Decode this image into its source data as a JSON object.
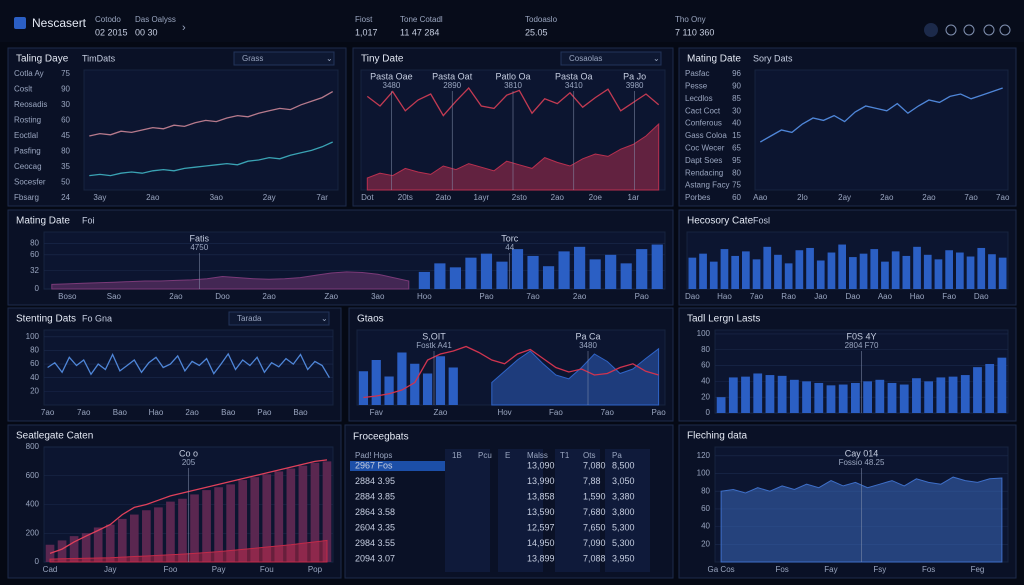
{
  "header": {
    "brand": "Nescasert",
    "stats": [
      {
        "label": "Cotodo",
        "value": "02 2015"
      },
      {
        "label": "Das Oalyss",
        "value": "00 30"
      },
      {
        "label": "Fiost",
        "value": "1,017"
      },
      {
        "label": "Tone Cotadl",
        "value": "11 47 284"
      },
      {
        "label": "Todoaslo",
        "value": "25.05"
      },
      {
        "label": "Tho Ony",
        "value": "7 110 360"
      }
    ]
  },
  "chart_data": [
    {
      "type": "line",
      "title": "Taling Daye",
      "subtitle": "TimDats",
      "selector": "Grass",
      "sidebar": [
        {
          "label": "Cotla Ay",
          "value": 75
        },
        {
          "label": "Coslt",
          "value": 90
        },
        {
          "label": "Reosadis",
          "value": 30
        },
        {
          "label": "Rosting",
          "value": 60
        },
        {
          "label": "Eoctlal",
          "value": 45
        },
        {
          "label": "Pasfing",
          "value": 80
        },
        {
          "label": "Ceocag",
          "value": 35
        },
        {
          "label": "Socesfer",
          "value": 50
        },
        {
          "label": "Fbsarg",
          "value": 24
        }
      ],
      "categories": [
        null,
        "3ay",
        null,
        null,
        null,
        null,
        "2ao",
        null,
        null,
        null,
        null,
        null,
        "3ao",
        null,
        null,
        null,
        null,
        "2ay",
        null,
        null,
        null,
        null,
        "7ar",
        null
      ],
      "ylim": [
        0,
        100
      ],
      "series": [
        {
          "color": "#b77a8c",
          "values": [
            45,
            47,
            46,
            49,
            48,
            50,
            52,
            51,
            54,
            53,
            56,
            58,
            57,
            60,
            62,
            61,
            64,
            66,
            68,
            67,
            71,
            74,
            77,
            82
          ]
        },
        {
          "color": "#3aa3b4",
          "values": [
            12,
            13,
            12,
            14,
            15,
            14,
            16,
            17,
            16,
            18,
            19,
            20,
            21,
            22,
            21,
            24,
            25,
            27,
            26,
            29,
            31,
            33,
            36,
            40
          ]
        }
      ]
    },
    {
      "type": "combo",
      "title": "Tiny Date",
      "selector": "Cosaolas",
      "categories": [
        "Dot",
        null,
        null,
        "20ts",
        null,
        null,
        "2ato",
        null,
        null,
        "1ayr",
        null,
        null,
        "2sto",
        null,
        null,
        "2ao",
        null,
        null,
        "2oe",
        null,
        null,
        "1ar",
        null,
        null
      ],
      "ylim": [
        0,
        100
      ],
      "annotations": [
        {
          "label": "Pasta Oae",
          "value": "3480"
        },
        {
          "label": "Pasta Oat",
          "value": "2890"
        },
        {
          "label": "Patlo Oa",
          "value": "3810"
        },
        {
          "label": "Pasta Oa",
          "value": "3410"
        },
        {
          "label": "Pa Jo",
          "value": "3980"
        }
      ],
      "series": [
        {
          "type": "area",
          "color": "#b8304f",
          "values": [
            10,
            14,
            12,
            18,
            15,
            13,
            20,
            17,
            22,
            19,
            16,
            24,
            21,
            18,
            27,
            23,
            20,
            26,
            30,
            28,
            34,
            38,
            45,
            55
          ]
        },
        {
          "type": "line",
          "color": "#c23a52",
          "values": [
            78,
            70,
            82,
            66,
            75,
            80,
            62,
            74,
            85,
            70,
            68,
            79,
            83,
            64,
            76,
            72,
            81,
            69,
            77,
            84,
            66,
            73,
            80,
            71
          ]
        }
      ]
    },
    {
      "type": "line",
      "title": "Mating Date",
      "subtitle": "Sory Dats",
      "sidebar": [
        {
          "label": "Pasfac",
          "value": 96
        },
        {
          "label": "Pesse",
          "value": 90
        },
        {
          "label": "Lecdlos",
          "value": 85
        },
        {
          "label": "Cact Coct",
          "value": 30
        },
        {
          "label": "Conferous",
          "value": 40
        },
        {
          "label": "Gass Coloa",
          "value": 15
        },
        {
          "label": "Coc Wecer",
          "value": 65
        },
        {
          "label": "Dapt Soes",
          "value": 95
        },
        {
          "label": "Rendacing",
          "value": 80
        },
        {
          "label": "Astang Facy",
          "value": 75
        },
        {
          "label": "Porbes",
          "value": 60
        }
      ],
      "categories": [
        "Aao",
        null,
        null,
        null,
        "2lo",
        null,
        null,
        null,
        "2ay",
        null,
        null,
        null,
        "2ao",
        null,
        null,
        null,
        "2ao",
        null,
        null,
        null,
        "7ao",
        null,
        null,
        "7ao"
      ],
      "ylim": [
        0,
        100
      ],
      "series": [
        {
          "color": "#4f86d8",
          "values": [
            40,
            45,
            50,
            48,
            55,
            60,
            58,
            62,
            57,
            65,
            70,
            68,
            66,
            72,
            64,
            70,
            75,
            73,
            78,
            80,
            76,
            79,
            82,
            85
          ]
        }
      ]
    },
    {
      "type": "combo",
      "title": "Mating Date",
      "subtitle": "Foi",
      "categories": [
        null,
        "Boso",
        null,
        null,
        "Sao",
        null,
        null,
        null,
        "2ao",
        null,
        null,
        "Doo",
        null,
        null,
        "2ao",
        null,
        null,
        null,
        "Zao",
        null,
        null,
        "3ao",
        null,
        null,
        "Hoo",
        null,
        null,
        null,
        "Pao",
        null,
        null,
        "7ao",
        null,
        null,
        "2ao",
        null,
        null,
        null,
        "Pao",
        null
      ],
      "ylim": [
        0,
        100
      ],
      "yticks": [
        0,
        32,
        60,
        80
      ],
      "annotations": [
        {
          "label": "Fatis",
          "value": "4750"
        },
        {
          "label": "Torc",
          "value": "44"
        }
      ],
      "series": [
        {
          "type": "area",
          "color": "#7a3a78",
          "values": [
            8,
            9,
            10,
            11,
            12,
            13,
            14,
            14,
            15,
            16,
            18,
            22,
            20,
            18,
            17,
            18,
            20,
            24,
            28,
            30,
            29,
            26,
            20,
            14,
            null,
            null,
            null,
            null,
            null,
            null,
            null,
            null,
            null,
            null,
            null,
            null,
            null,
            null,
            null,
            null
          ]
        },
        {
          "type": "bar",
          "color": "#2b5fc4",
          "values": [
            null,
            null,
            null,
            null,
            null,
            null,
            null,
            null,
            null,
            null,
            null,
            null,
            null,
            null,
            null,
            null,
            null,
            null,
            null,
            null,
            null,
            null,
            null,
            null,
            30,
            45,
            38,
            55,
            62,
            48,
            70,
            58,
            40,
            66,
            74,
            52,
            60,
            45,
            70,
            78
          ]
        }
      ]
    },
    {
      "type": "bar",
      "title": "Hecosory Cate",
      "subtitle": "Fosl",
      "categories": [
        "Dao",
        null,
        null,
        "Hao",
        null,
        null,
        "7ao",
        null,
        null,
        "Rao",
        null,
        null,
        "Jao",
        null,
        null,
        "Dao",
        null,
        null,
        "Aao",
        null,
        null,
        "Hao",
        null,
        null,
        "Fao",
        null,
        null,
        "Dao",
        null,
        null
      ],
      "ylim": [
        0,
        100
      ],
      "series": [
        {
          "color": "#2b5fc4",
          "values": [
            55,
            62,
            48,
            70,
            58,
            66,
            52,
            74,
            60,
            45,
            68,
            72,
            50,
            64,
            78,
            56,
            62,
            70,
            48,
            66,
            58,
            74,
            60,
            52,
            68,
            64,
            57,
            72,
            61,
            55
          ]
        }
      ]
    },
    {
      "type": "line",
      "title": "Stenting Dats",
      "subtitle": "Fo Gna",
      "selector": "Tarada",
      "categories": [
        "7ao",
        null,
        null,
        null,
        null,
        "7ao",
        null,
        null,
        null,
        null,
        "Bao",
        null,
        null,
        null,
        null,
        "Hao",
        null,
        null,
        null,
        null,
        "2ao",
        null,
        null,
        null,
        null,
        "Bao",
        null,
        null,
        null,
        null,
        "Pao",
        null,
        null,
        null,
        null,
        "Bao",
        null,
        null,
        null,
        null
      ],
      "ylim": [
        0,
        110
      ],
      "yticks": [
        20,
        40,
        60,
        80,
        100
      ],
      "series": [
        {
          "color": "#4f86d8",
          "values": [
            55,
            62,
            48,
            70,
            58,
            66,
            45,
            60,
            52,
            74,
            50,
            58,
            66,
            48,
            62,
            70,
            55,
            60,
            72,
            50,
            64,
            58,
            68,
            46,
            60,
            75,
            52,
            66,
            58,
            70,
            48,
            62,
            56,
            68,
            60,
            74,
            52,
            64,
            58,
            40
          ]
        }
      ]
    },
    {
      "type": "combo",
      "title": "Gtaos",
      "categories": [
        null,
        "Fav",
        null,
        null,
        null,
        null,
        "Zao",
        null,
        null,
        null,
        null,
        "Hov",
        null,
        null,
        null,
        "Fao",
        null,
        null,
        null,
        "7ao",
        null,
        null,
        null,
        "Pao"
      ],
      "ylim": [
        0,
        100
      ],
      "annotations": [
        {
          "label": "S,OIT",
          "value": "Fostk A41"
        },
        {
          "label": "Pa Ca",
          "value": "3480"
        }
      ],
      "series": [
        {
          "type": "bar",
          "color": "#2b5fc4",
          "values": [
            45,
            60,
            38,
            70,
            55,
            42,
            65,
            50,
            null,
            null,
            null,
            null,
            null,
            null,
            null,
            null,
            null,
            null,
            null,
            null,
            null,
            null,
            null,
            null
          ]
        },
        {
          "type": "area",
          "color": "#2f64c8",
          "values": [
            null,
            null,
            null,
            null,
            null,
            null,
            null,
            null,
            null,
            null,
            30,
            45,
            60,
            72,
            55,
            40,
            35,
            50,
            68,
            58,
            42,
            48,
            62,
            75
          ]
        },
        {
          "type": "line",
          "color": "#d0344f",
          "values": [
            10,
            12,
            15,
            20,
            30,
            60,
            68,
            72,
            78,
            70,
            60,
            55,
            68,
            74,
            62,
            50,
            44,
            48,
            40,
            42,
            50,
            55,
            45,
            40
          ]
        }
      ]
    },
    {
      "type": "bar",
      "title": "Tadl Lergn Lasts",
      "ylim": [
        0,
        105
      ],
      "yticks": [
        0,
        20,
        40,
        60,
        80,
        100
      ],
      "annotations": [
        {
          "label": "F0S 4Y",
          "value": "2804 F70"
        }
      ],
      "series": [
        {
          "color": "#2b5fc4",
          "values": [
            20,
            45,
            46,
            50,
            48,
            47,
            42,
            40,
            38,
            35,
            36,
            38,
            40,
            42,
            38,
            36,
            44,
            40,
            45,
            46,
            48,
            58,
            62,
            70
          ]
        }
      ]
    },
    {
      "type": "combo",
      "title": "Seatlegate Caten",
      "categories": [
        "Cad",
        null,
        null,
        null,
        null,
        "Jay",
        null,
        null,
        null,
        null,
        "Foo",
        null,
        null,
        null,
        "Pay",
        null,
        null,
        null,
        "Fou",
        null,
        null,
        null,
        "Pop",
        null
      ],
      "ylim": [
        0,
        800
      ],
      "yticks": [
        0,
        200,
        400,
        600,
        800
      ],
      "annotations": [
        {
          "label": "Co o",
          "value": "205"
        }
      ],
      "series": [
        {
          "type": "bar",
          "color": "#5a2750",
          "values": [
            120,
            150,
            180,
            200,
            240,
            260,
            300,
            330,
            360,
            380,
            420,
            440,
            470,
            500,
            520,
            540,
            570,
            590,
            610,
            630,
            650,
            670,
            690,
            700
          ]
        },
        {
          "type": "area",
          "color": "#c22a48",
          "values": [
            20,
            22,
            24,
            26,
            28,
            30,
            34,
            38,
            42,
            46,
            50,
            55,
            60,
            66,
            72,
            80,
            88,
            96,
            104,
            112,
            120,
            130,
            140,
            150
          ]
        },
        {
          "type": "line",
          "color": "#e0405a",
          "values": [
            60,
            90,
            140,
            180,
            220,
            260,
            330,
            380,
            400,
            430,
            460,
            480,
            500,
            520,
            540,
            560,
            580,
            600,
            620,
            640,
            660,
            680,
            700,
            710
          ]
        }
      ]
    },
    {
      "type": "area",
      "title": "Fleching data",
      "categories": [
        "Ga Cos",
        null,
        null,
        null,
        null,
        "Fos",
        null,
        null,
        null,
        "Fay",
        null,
        null,
        null,
        "Fsy",
        null,
        null,
        null,
        "Fos",
        null,
        null,
        null,
        "Feg",
        null,
        null
      ],
      "ylim": [
        0,
        130
      ],
      "yticks": [
        20,
        40,
        60,
        80,
        100,
        120
      ],
      "annotations": [
        {
          "label": "Cay 014",
          "value": "Fossio 48.25"
        }
      ],
      "series": [
        {
          "color": "#3e6fc8",
          "values": [
            80,
            82,
            78,
            84,
            80,
            86,
            82,
            88,
            84,
            92,
            86,
            90,
            84,
            88,
            92,
            86,
            94,
            90,
            88,
            96,
            92,
            90,
            94,
            95
          ]
        }
      ]
    }
  ],
  "table": {
    "title": "Froceegbats",
    "headers": [
      "Pad! Hops",
      "1B",
      "Pcu",
      "E",
      "Malss",
      "T1",
      "Ots",
      "Pa"
    ],
    "rows": [
      {
        "name": "2967 Fos",
        "mabs": "13,090",
        "ofs": "7,080",
        "pa": "8,500"
      },
      {
        "name": "2884 3.95",
        "mabs": "13,990",
        "ofs": "7,88",
        "pa": "3,050"
      },
      {
        "name": "2884 3.85",
        "mabs": "13,858",
        "ofs": "1,590",
        "pa": "3,380"
      },
      {
        "name": "2864 3.58",
        "mabs": "13,590",
        "ofs": "7,680",
        "pa": "3,800"
      },
      {
        "name": "2604 3.35",
        "mabs": "12,597",
        "ofs": "7,650",
        "pa": "5,300"
      },
      {
        "name": "2984 3.55",
        "mabs": "14,950",
        "ofs": "7,090",
        "pa": "5,300"
      },
      {
        "name": "2094 3.07",
        "mabs": "13,899",
        "ofs": "7,088",
        "pa": "3,950"
      }
    ]
  }
}
